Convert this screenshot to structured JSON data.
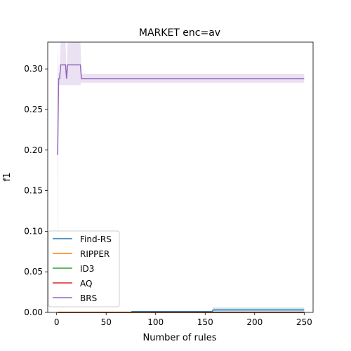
{
  "chart_data": {
    "type": "line",
    "title": "MARKET enc=av",
    "xlabel": "Number of rules",
    "ylabel": "f1",
    "xlim": [
      -9,
      259
    ],
    "ylim": [
      0.0,
      0.333
    ],
    "xticks": [
      0,
      50,
      100,
      150,
      200,
      250
    ],
    "yticks": [
      0.0,
      0.05,
      0.1,
      0.15,
      0.2,
      0.25,
      0.3
    ],
    "xtick_labels": [
      "0",
      "50",
      "100",
      "150",
      "200",
      "250"
    ],
    "ytick_labels": [
      "0.00",
      "0.05",
      "0.10",
      "0.15",
      "0.20",
      "0.25",
      "0.30"
    ],
    "grid": false,
    "legend_position": "lower-left",
    "series": [
      {
        "name": "Find-RS",
        "color": "#1f77b4",
        "x": [
          1,
          75,
          76,
          157,
          158,
          250
        ],
        "y": [
          0.0,
          0.0,
          0.001,
          0.001,
          0.003,
          0.003
        ],
        "band_lower": [
          0.0,
          0.0,
          0.0,
          0.0,
          0.0,
          0.0
        ],
        "band_upper": [
          0.0,
          0.0,
          0.002,
          0.002,
          0.006,
          0.006
        ]
      },
      {
        "name": "RIPPER",
        "color": "#ff7f0e",
        "x": [
          1,
          250
        ],
        "y": [
          0.0,
          0.0
        ]
      },
      {
        "name": "ID3",
        "color": "#2ca02c",
        "x": [
          1,
          250
        ],
        "y": [
          0.0,
          0.0
        ]
      },
      {
        "name": "AQ",
        "color": "#d62728",
        "x": [
          1,
          250
        ],
        "y": [
          0.0,
          0.0
        ]
      },
      {
        "name": "BRS",
        "color": "#9467bd",
        "x": [
          1,
          2,
          3,
          4,
          5,
          6,
          7,
          8,
          9,
          10,
          11,
          12,
          13,
          14,
          15,
          16,
          17,
          18,
          19,
          20,
          21,
          22,
          23,
          24,
          25,
          26,
          250
        ],
        "y": [
          0.194,
          0.288,
          0.288,
          0.305,
          0.305,
          0.305,
          0.305,
          0.305,
          0.305,
          0.288,
          0.305,
          0.305,
          0.305,
          0.305,
          0.305,
          0.305,
          0.305,
          0.305,
          0.305,
          0.305,
          0.305,
          0.305,
          0.305,
          0.305,
          0.288,
          0.288,
          0.288
        ],
        "band_lower": [
          0.0,
          0.28,
          0.28,
          0.28,
          0.28,
          0.28,
          0.28,
          0.28,
          0.28,
          0.28,
          0.28,
          0.28,
          0.28,
          0.28,
          0.28,
          0.28,
          0.28,
          0.28,
          0.28,
          0.28,
          0.28,
          0.28,
          0.28,
          0.28,
          0.283,
          0.283,
          0.283
        ],
        "band_upper": [
          0.333,
          0.295,
          0.295,
          0.333,
          0.333,
          0.333,
          0.333,
          0.333,
          0.333,
          0.295,
          0.333,
          0.333,
          0.333,
          0.333,
          0.333,
          0.333,
          0.333,
          0.333,
          0.333,
          0.333,
          0.333,
          0.333,
          0.333,
          0.333,
          0.294,
          0.294,
          0.294
        ]
      }
    ]
  }
}
